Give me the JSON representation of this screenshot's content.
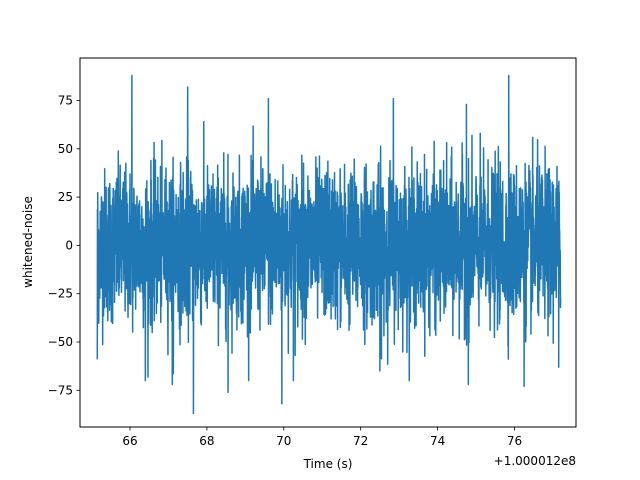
{
  "chart_data": {
    "type": "line",
    "title": "",
    "xlabel": "Time (s)",
    "ylabel": "whitened-noise",
    "x_offset_label": "+1.000012e8",
    "xlim": [
      64.7,
      77.6
    ],
    "ylim": [
      -94,
      97
    ],
    "x_ticks": [
      66,
      68,
      70,
      72,
      74,
      76
    ],
    "x_tick_labels": [
      "66",
      "68",
      "70",
      "72",
      "74",
      "76"
    ],
    "y_ticks": [
      -75,
      -50,
      -25,
      0,
      25,
      50,
      75
    ],
    "y_tick_labels": [
      "−75",
      "−50",
      "−25",
      "0",
      "25",
      "50",
      "75"
    ],
    "grid": false,
    "legend": "none",
    "series": [
      {
        "color": "#1f77b4",
        "x_start": 65.15,
        "x_end": 77.2,
        "typical_envelope": [
          -45,
          45
        ],
        "peaks": [
          {
            "x": 66.05,
            "y": 88
          },
          {
            "x": 67.5,
            "y": 82
          },
          {
            "x": 69.6,
            "y": 76
          },
          {
            "x": 72.85,
            "y": 76
          },
          {
            "x": 74.75,
            "y": 73
          },
          {
            "x": 75.85,
            "y": 88
          },
          {
            "x": 65.15,
            "y": -59
          },
          {
            "x": 66.4,
            "y": -70
          },
          {
            "x": 67.1,
            "y": -72
          },
          {
            "x": 67.65,
            "y": -87
          },
          {
            "x": 68.55,
            "y": -76
          },
          {
            "x": 69.95,
            "y": -82
          },
          {
            "x": 70.25,
            "y": -70
          },
          {
            "x": 72.5,
            "y": -65
          },
          {
            "x": 74.8,
            "y": -72
          },
          {
            "x": 76.25,
            "y": -73
          },
          {
            "x": 77.15,
            "y": -63
          }
        ]
      }
    ]
  }
}
